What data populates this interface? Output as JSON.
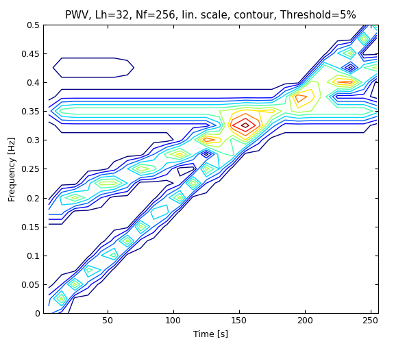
{
  "chart_data": {
    "type": "contour",
    "title": "PWV, Lh=32, Nf=256, lin. scale, contour, Threshold=5%",
    "x_label": "Time [s]",
    "y_label": "Frequency [Hz]",
    "x": [
      5,
      15,
      25,
      35,
      45,
      55,
      65,
      75,
      85,
      95,
      105,
      115,
      125,
      135,
      145,
      155,
      165,
      175,
      185,
      195,
      205,
      215,
      225,
      235,
      245,
      255
    ],
    "y": [
      0,
      0.025,
      0.05,
      0.075,
      0.1,
      0.125,
      0.15,
      0.175,
      0.2,
      0.225,
      0.25,
      0.275,
      0.3,
      0.325,
      0.35,
      0.375,
      0.4,
      0.425,
      0.45,
      0.475,
      0.5
    ],
    "z": [
      [
        0.3,
        0.1,
        0,
        0,
        0,
        0,
        0,
        0,
        0,
        0,
        0,
        0,
        0,
        0,
        0,
        0,
        0,
        0,
        0,
        0,
        0,
        0,
        0,
        0,
        0,
        0
      ],
      [
        0.2,
        0.6,
        0,
        0,
        0,
        0,
        0,
        0,
        0,
        0,
        0,
        0,
        0,
        0,
        0,
        0,
        0,
        0,
        0,
        0,
        0,
        0,
        0,
        0,
        0,
        0
      ],
      [
        0,
        0.15,
        0.6,
        0.2,
        0,
        0,
        0,
        0,
        0,
        0,
        0,
        0,
        0,
        0,
        0,
        0,
        0,
        0,
        0,
        0,
        0,
        0,
        0,
        0,
        0,
        0
      ],
      [
        0,
        0,
        0,
        0.5,
        0.35,
        0,
        0,
        0,
        0,
        0,
        0,
        0,
        0,
        0,
        0,
        0,
        0,
        0,
        0,
        0,
        0,
        0,
        0,
        0,
        0,
        0
      ],
      [
        0,
        0,
        0,
        0,
        0.35,
        0.5,
        0,
        0,
        0,
        0,
        0,
        0,
        0,
        0,
        0,
        0,
        0,
        0,
        0,
        0,
        0,
        0,
        0,
        0,
        0,
        0
      ],
      [
        0,
        0,
        0,
        0,
        0,
        0.2,
        0.6,
        0.1,
        0,
        0,
        0,
        0,
        0,
        0,
        0,
        0,
        0,
        0,
        0,
        0,
        0,
        0,
        0,
        0,
        0,
        0
      ],
      [
        0,
        0,
        0,
        0,
        0,
        0,
        0,
        0.6,
        0.25,
        0,
        0,
        0,
        0,
        0,
        0,
        0,
        0,
        0,
        0,
        0,
        0,
        0,
        0,
        0,
        0,
        0
      ],
      [
        0.3,
        0.3,
        0,
        0,
        0,
        0,
        0,
        0,
        0.45,
        0.4,
        0,
        0,
        0,
        0,
        0,
        0,
        0,
        0,
        0,
        0,
        0,
        0,
        0,
        0,
        0,
        0
      ],
      [
        0,
        0.4,
        0.6,
        0.4,
        0.15,
        0,
        0,
        0,
        0,
        0.3,
        0.6,
        0,
        0,
        0,
        0,
        0,
        0,
        0,
        0,
        0,
        0,
        0,
        0,
        0,
        0,
        0
      ],
      [
        0,
        0,
        0,
        0.3,
        0.6,
        0.6,
        0.35,
        0,
        0,
        0,
        0.1,
        0.65,
        0.15,
        0,
        0,
        0,
        0,
        0,
        0,
        0,
        0,
        0,
        0,
        0,
        0,
        0
      ],
      [
        0,
        0,
        0,
        0,
        0,
        0.1,
        0.35,
        0.65,
        0.5,
        0.25,
        0,
        0,
        0.6,
        0.35,
        0,
        0,
        0,
        0,
        0,
        0,
        0,
        0,
        0,
        0,
        0,
        0
      ],
      [
        0,
        0,
        0,
        0,
        0,
        0,
        0,
        0,
        0.25,
        0.5,
        0.7,
        0.4,
        0,
        0.4,
        0.5,
        0,
        0,
        0,
        0,
        0,
        0,
        0,
        0,
        0,
        0,
        0
      ],
      [
        0,
        0,
        0,
        0,
        0,
        0,
        0,
        0,
        0,
        0,
        0.1,
        0.4,
        0.85,
        0.7,
        0.4,
        0.65,
        0.2,
        0,
        0,
        0,
        0,
        0,
        0,
        0,
        0,
        0
      ],
      [
        0,
        0.1,
        0.1,
        0.1,
        0.1,
        0.1,
        0.1,
        0.1,
        0.1,
        0.1,
        0.1,
        0.1,
        0.1,
        0.3,
        0.85,
        1.0,
        0.8,
        0.3,
        0.1,
        0.1,
        0.1,
        0.1,
        0.1,
        0.1,
        0.1,
        0
      ],
      [
        0.2,
        0.5,
        0.55,
        0.55,
        0.55,
        0.55,
        0.55,
        0.55,
        0.55,
        0.55,
        0.55,
        0.55,
        0.55,
        0.55,
        0.6,
        0.7,
        0.65,
        0.7,
        0.5,
        0.6,
        0.55,
        0.55,
        0.55,
        0.55,
        0.55,
        0.4
      ],
      [
        0,
        0.1,
        0.1,
        0.1,
        0.1,
        0.1,
        0.1,
        0.1,
        0.1,
        0.1,
        0.1,
        0.1,
        0.1,
        0.1,
        0.1,
        0.1,
        0.1,
        0.1,
        0.4,
        0.85,
        0.7,
        0.5,
        0.1,
        0.1,
        0.1,
        0
      ],
      [
        0,
        0,
        0,
        0,
        0,
        0,
        0,
        0,
        0,
        0,
        0,
        0,
        0,
        0,
        0,
        0,
        0,
        0,
        0,
        0,
        0.6,
        0.5,
        0.75,
        0.8,
        0.4,
        0
      ],
      [
        0,
        0.15,
        0.15,
        0.15,
        0.15,
        0.15,
        0.1,
        0,
        0,
        0,
        0,
        0,
        0,
        0,
        0,
        0,
        0,
        0,
        0,
        0,
        0,
        0.55,
        0.35,
        0,
        0.45,
        0.6
      ],
      [
        0,
        0,
        0,
        0,
        0,
        0,
        0,
        0,
        0,
        0,
        0,
        0,
        0,
        0,
        0,
        0,
        0,
        0,
        0,
        0,
        0,
        0,
        0.35,
        0.6,
        0,
        0
      ],
      [
        0,
        0,
        0,
        0,
        0,
        0,
        0,
        0,
        0,
        0,
        0,
        0,
        0,
        0,
        0,
        0,
        0,
        0,
        0,
        0,
        0,
        0,
        0,
        0,
        0.65,
        0
      ],
      [
        0,
        0,
        0,
        0,
        0,
        0,
        0,
        0,
        0,
        0,
        0,
        0,
        0,
        0,
        0,
        0,
        0,
        0,
        0,
        0,
        0,
        0,
        0,
        0,
        0,
        0.6
      ]
    ],
    "levels": [
      0.05,
      0.15,
      0.25,
      0.35,
      0.45,
      0.55,
      0.65,
      0.75,
      0.85,
      0.95
    ],
    "color": "jet",
    "xlim": [
      1,
      256
    ],
    "xticks": [
      50,
      100,
      150,
      200,
      250
    ],
    "ylim": [
      0,
      0.5
    ],
    "yticks": [
      0,
      0.05,
      0.1,
      0.15,
      0.2,
      0.25,
      0.3,
      0.35,
      0.4,
      0.45,
      0.5
    ]
  }
}
